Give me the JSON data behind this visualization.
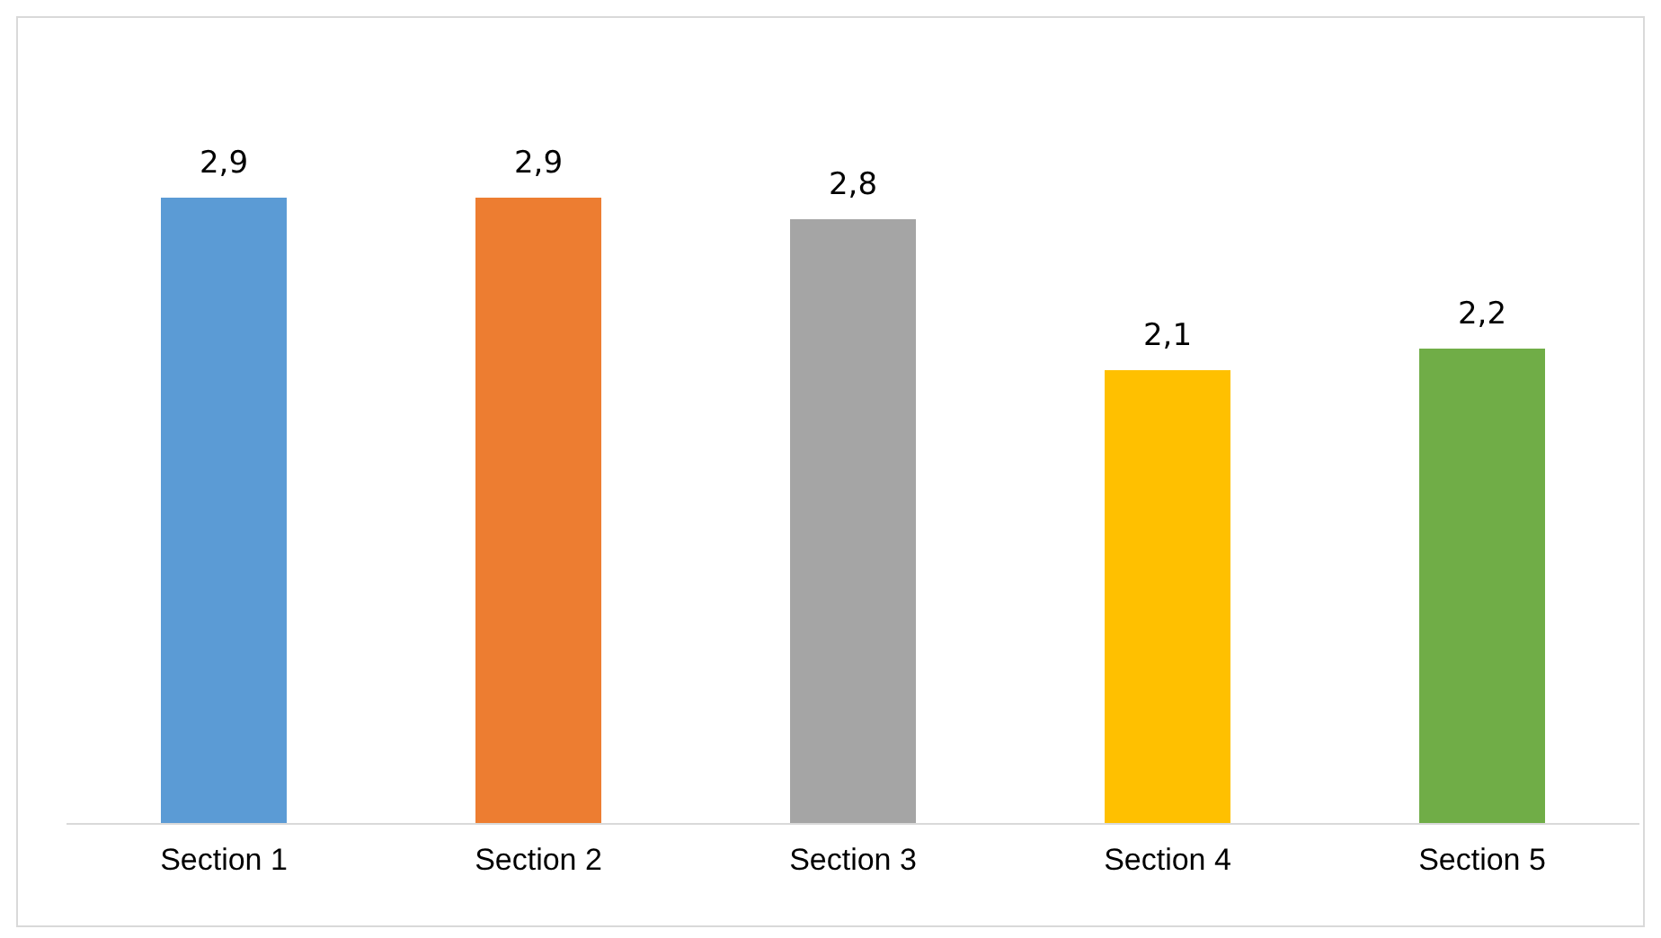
{
  "chart_data": {
    "type": "bar",
    "categories": [
      "Section 1",
      "Section 2",
      "Section 3",
      "Section 4",
      "Section 5"
    ],
    "values": [
      2.9,
      2.9,
      2.8,
      2.1,
      2.2
    ],
    "colors": [
      "#5b9bd5",
      "#ed7d31",
      "#a5a5a5",
      "#ffc000",
      "#70ad47"
    ],
    "value_labels": [
      "2,9",
      "2,9",
      "2,8",
      "2,1",
      "2,2"
    ]
  }
}
